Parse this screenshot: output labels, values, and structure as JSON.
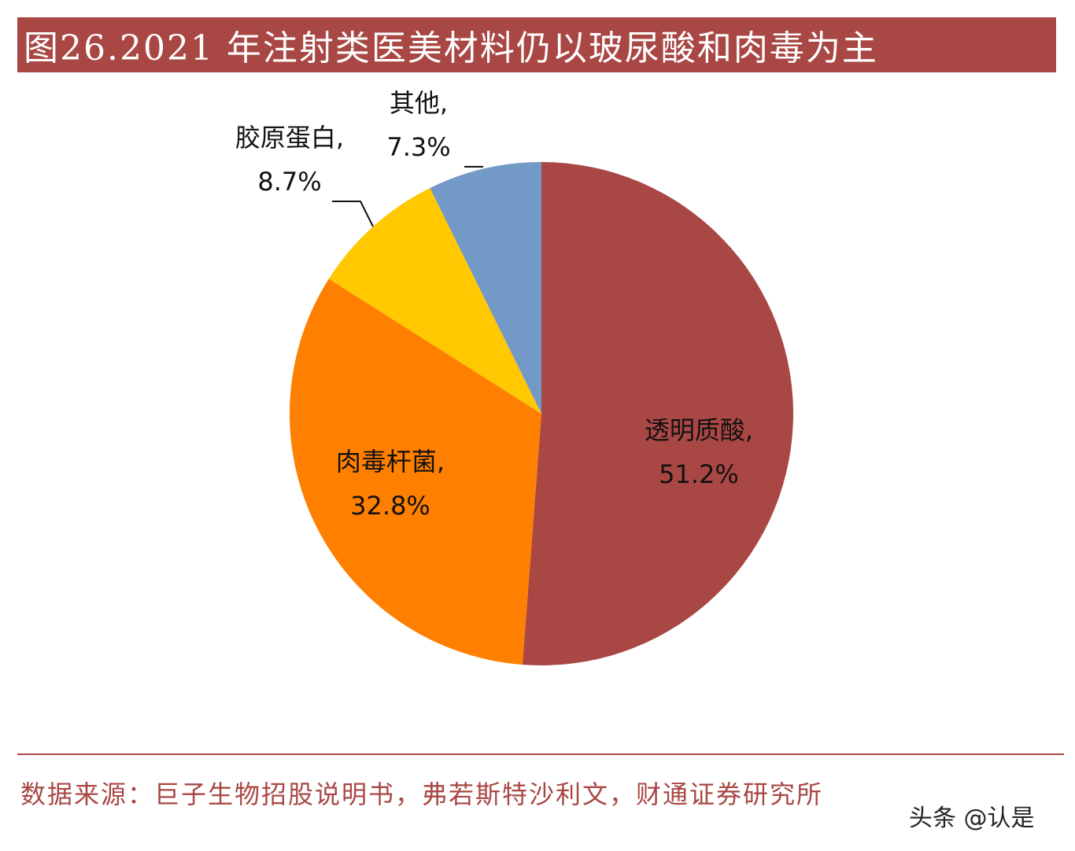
{
  "title": "图26.2021 年注射类医美材料仍以玻尿酸和肉毒为主",
  "source": "数据来源：巨子生物招股说明书，弗若斯特沙利文，财通证券研究所",
  "watermark": "头条 @认是",
  "chart_data": {
    "type": "pie",
    "slices": [
      {
        "name": "透明质酸",
        "value": 51.2,
        "label_line1": "透明质酸,",
        "label_line2": "51.2%",
        "color": "#a94744"
      },
      {
        "name": "肉毒杆菌",
        "value": 32.8,
        "label_line1": "肉毒杆菌,",
        "label_line2": "32.8%",
        "color": "#ff7f00"
      },
      {
        "name": "胶原蛋白",
        "value": 8.7,
        "label_line1": "胶原蛋白,",
        "label_line2": "8.7%",
        "color": "#ffc800"
      },
      {
        "name": "其他",
        "value": 7.3,
        "label_line1": "其他,",
        "label_line2": "7.3%",
        "color": "#7399c6"
      }
    ],
    "start_angle": "12 o'clock",
    "direction": "clockwise"
  }
}
